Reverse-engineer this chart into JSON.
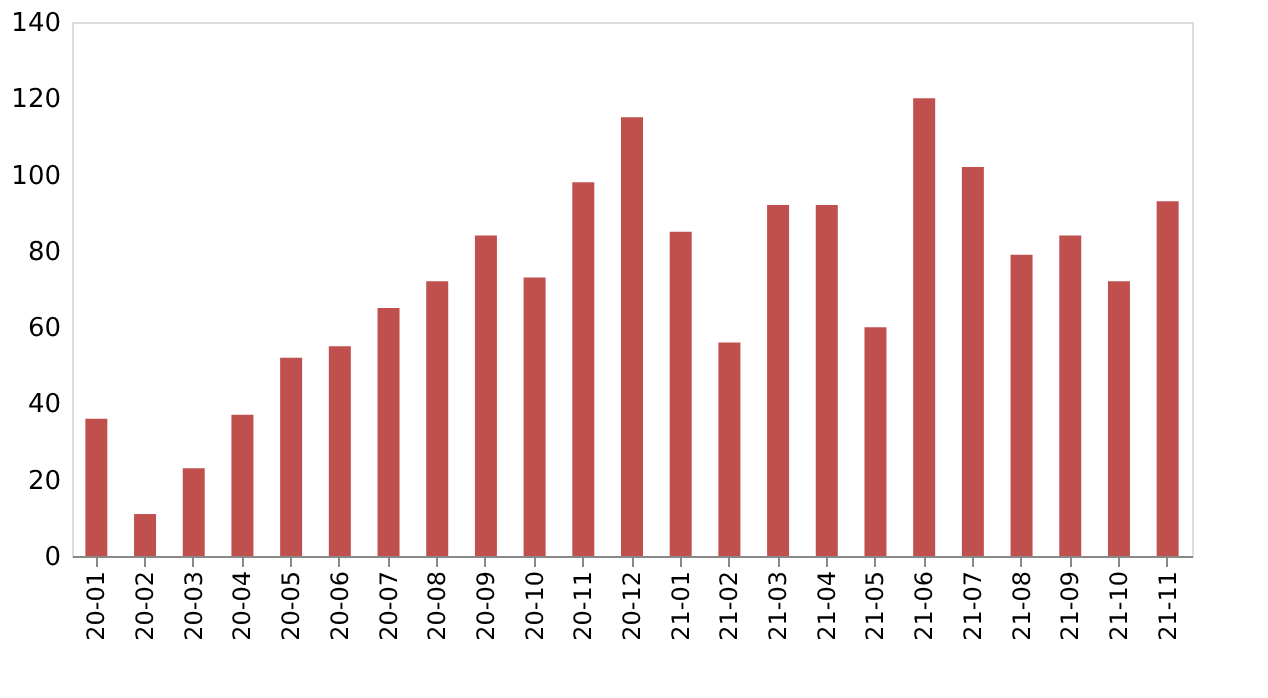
{
  "chart_data": {
    "type": "bar",
    "categories": [
      "20-01",
      "20-02",
      "20-03",
      "20-04",
      "20-05",
      "20-06",
      "20-07",
      "20-08",
      "20-09",
      "20-10",
      "20-11",
      "20-12",
      "21-01",
      "21-02",
      "21-03",
      "21-04",
      "21-05",
      "21-06",
      "21-07",
      "21-08",
      "21-09",
      "21-10",
      "21-11"
    ],
    "values": [
      36,
      11,
      23,
      37,
      52,
      55,
      65,
      72,
      84,
      73,
      98,
      115,
      85,
      56,
      92,
      92,
      60,
      120,
      102,
      79,
      84,
      72,
      93
    ],
    "color": "#c0504d",
    "ylim": [
      0,
      140
    ],
    "yticks": [
      0,
      20,
      40,
      60,
      80,
      100,
      120,
      140
    ],
    "grid": false
  }
}
